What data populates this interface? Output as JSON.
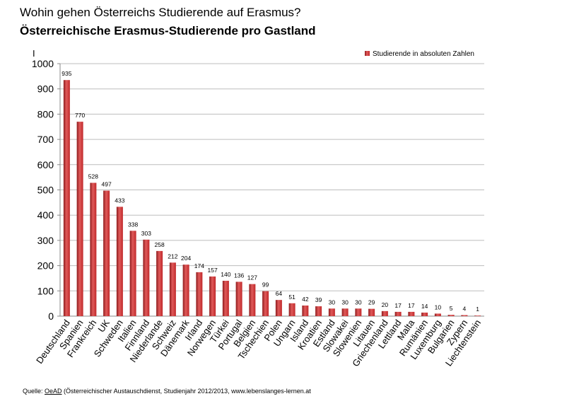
{
  "header": {
    "title": "Wohin gehen Österreichs Studierende auf Erasmus?",
    "subtitle": "Österreichische Erasmus-Studierende pro Gastland",
    "marker": "I"
  },
  "footer": {
    "prefix": "Quelle: ",
    "source_link": "OeAD",
    "rest": " (Österreichischer Austauschdienst, Studienjahr 2012/2013, www.lebenslanges-lernen.at"
  },
  "colors": {
    "bar": "#c0282a",
    "bar_dark": "#8e1a1c",
    "bar_light": "#e05a5a",
    "grid": "#bdbdbd"
  },
  "chart_data": {
    "type": "bar",
    "categories": [
      "Deutschland",
      "Spanien",
      "Frankreich",
      "UK",
      "Schweden",
      "Italien",
      "Finnland",
      "Niederlande",
      "Schweiz",
      "Dänemark",
      "Irland",
      "Norwegen",
      "Türkei",
      "Portugal",
      "Belgien",
      "Tschechien",
      "Polen",
      "Ungarn",
      "Island",
      "Kroatien",
      "Estland",
      "Slowakei",
      "Slowenien",
      "Litauen",
      "Griechenland",
      "Lettland",
      "Malta",
      "Rumänien",
      "Luxemburg",
      "Bulgarien",
      "Zypern",
      "Liechtenstein"
    ],
    "series": [
      {
        "name": "Studierende in absoluten Zahlen",
        "values": [
          935,
          770,
          528,
          497,
          433,
          338,
          303,
          258,
          212,
          204,
          174,
          157,
          140,
          136,
          127,
          99,
          64,
          51,
          42,
          39,
          30,
          30,
          30,
          29,
          20,
          17,
          17,
          14,
          10,
          5,
          4,
          1
        ]
      }
    ],
    "ylim": [
      0,
      1000
    ],
    "yticks": [
      "0",
      "100",
      "200",
      "300",
      "400",
      "500",
      "600",
      "700",
      "800",
      "900",
      "1000"
    ],
    "grid": true,
    "legend_position": "top-right"
  }
}
